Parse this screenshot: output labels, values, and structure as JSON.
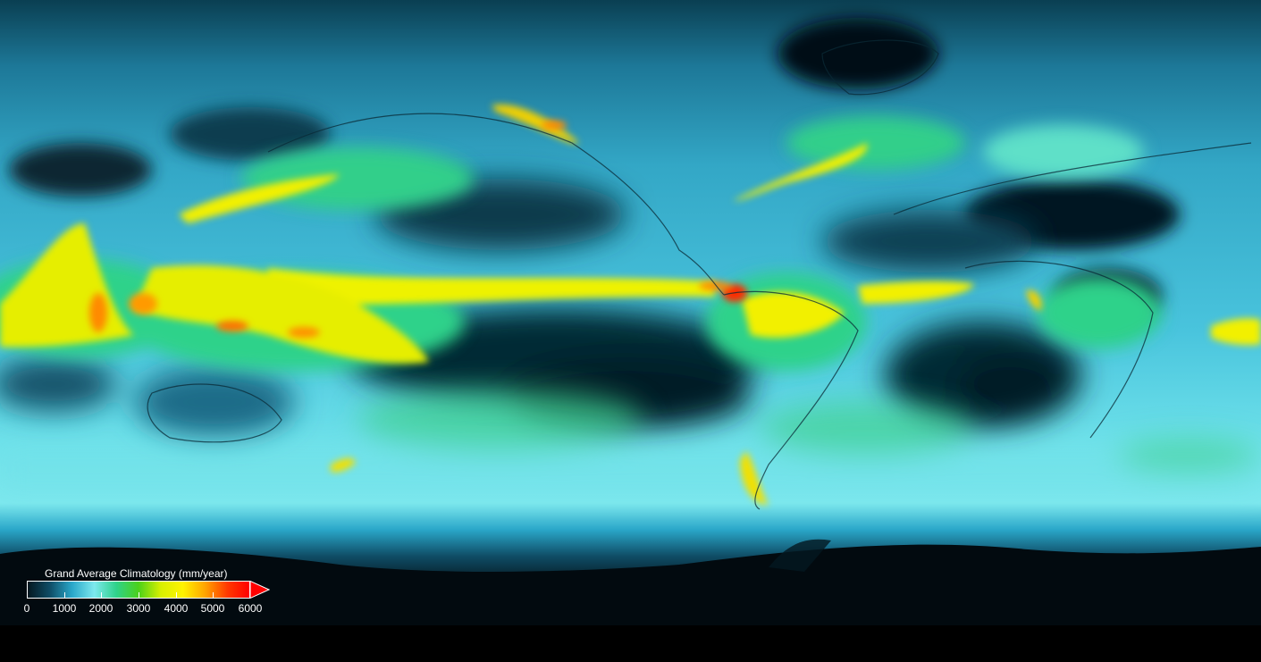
{
  "map": {
    "subject": "Global annual precipitation climatology",
    "projection": "equirectangular"
  },
  "legend": {
    "title": "Grand Average Climatology (mm/year)",
    "min": 0,
    "max": 6000,
    "extend": "max",
    "ticks": [
      "0",
      "1000",
      "2000",
      "3000",
      "4000",
      "5000",
      "6000"
    ],
    "colormap": [
      "#051820",
      "#0f4d66",
      "#2aa7c9",
      "#7de8ee",
      "#2fd28a",
      "#4bd11a",
      "#d7ef00",
      "#fff300",
      "#ffa500",
      "#ff3a00",
      "#ff0000"
    ]
  },
  "colors": {
    "ocean_dry": "#042631",
    "ocean_mid": "#1d85a6",
    "wet_band": "#f6f200",
    "extreme": "#ff2200",
    "antarctica": "#020a0f",
    "background": "#000000"
  }
}
